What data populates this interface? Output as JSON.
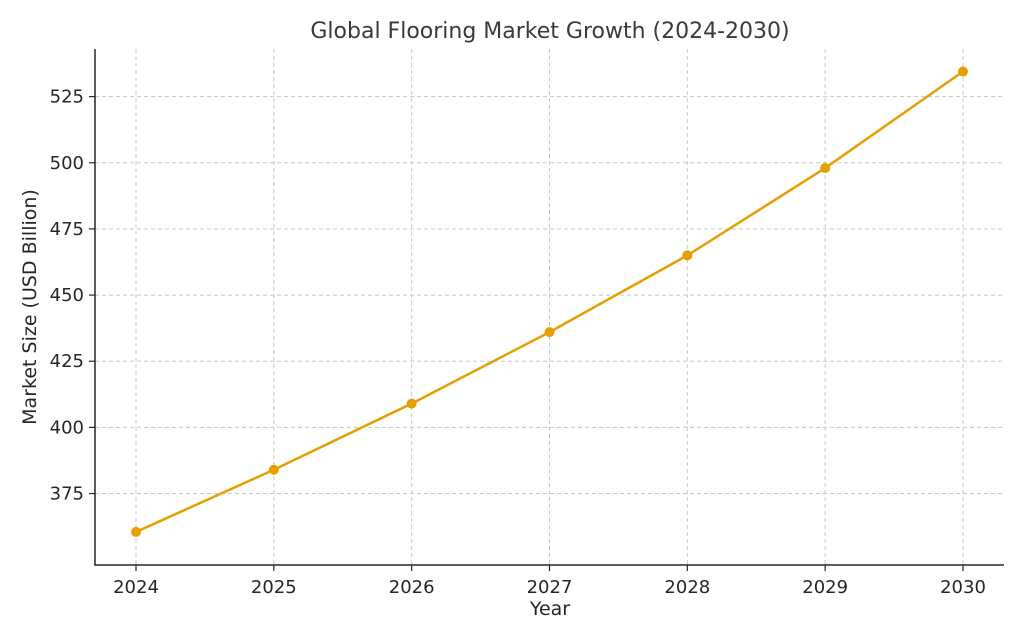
{
  "chart_data": {
    "type": "line",
    "title": "Global Flooring Market Growth (2024-2030)",
    "xlabel": "Year",
    "ylabel": "Market Size (USD Billion)",
    "categories": [
      "2024",
      "2025",
      "2026",
      "2027",
      "2028",
      "2029",
      "2030"
    ],
    "series": [
      {
        "values": [
          360.5,
          384,
          409,
          436,
          465,
          498,
          534.5
        ],
        "color": "#e69f00"
      }
    ],
    "yticks": [
      375,
      400,
      425,
      450,
      475,
      500,
      525
    ],
    "ylim": [
      348,
      543
    ],
    "grid": true,
    "legend": "none"
  }
}
